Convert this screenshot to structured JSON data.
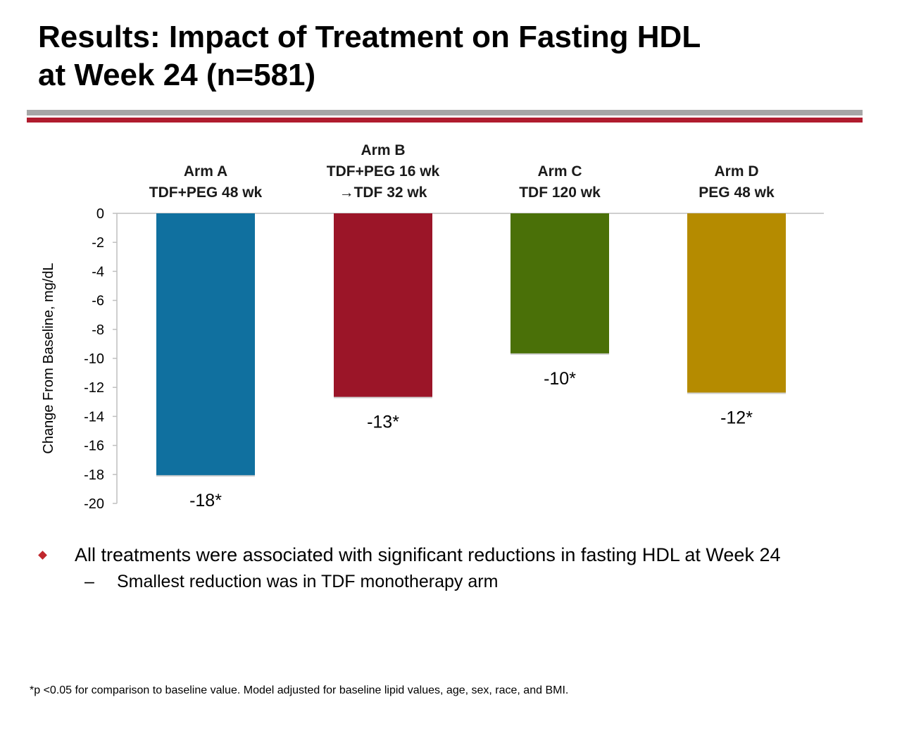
{
  "slide": {
    "title_line1": "Results: Impact of Treatment on Fasting HDL",
    "title_line2": "at Week 24 (n=581)"
  },
  "chart_data": {
    "type": "bar",
    "categories": [
      {
        "line1": "Arm A",
        "line2": "TDF+PEG 48 wk",
        "line3": ""
      },
      {
        "line1": "Arm B",
        "line2": "TDF+PEG 16 wk",
        "line3": "→TDF 32 wk"
      },
      {
        "line1": "Arm C",
        "line2": "TDF 120 wk",
        "line3": ""
      },
      {
        "line1": "Arm D",
        "line2": "PEG 48 wk",
        "line3": ""
      }
    ],
    "values": [
      -18.1,
      -12.7,
      -9.7,
      -12.4
    ],
    "data_labels": [
      "-18*",
      "-13*",
      "-10*",
      "-12*"
    ],
    "colors": [
      "#10709f",
      "#9b1528",
      "#4a7008",
      "#b58b00"
    ],
    "ylabel": "Change From Baseline, mg/dL",
    "ylim": [
      -20,
      0
    ],
    "yticks": [
      "0",
      "-2",
      "-4",
      "-6",
      "-8",
      "-10",
      "-12",
      "-14",
      "-16",
      "-18",
      "-20"
    ],
    "grid": false
  },
  "bullets": {
    "main": "All treatments were associated with significant reductions in fasting HDL at Week 24",
    "sub_mark": "–",
    "sub": "Smallest reduction was in TDF monotherapy arm"
  },
  "footnote": "*p <0.05 for comparison to baseline value. Model adjusted for baseline lipid values, age, sex, race, and BMI."
}
